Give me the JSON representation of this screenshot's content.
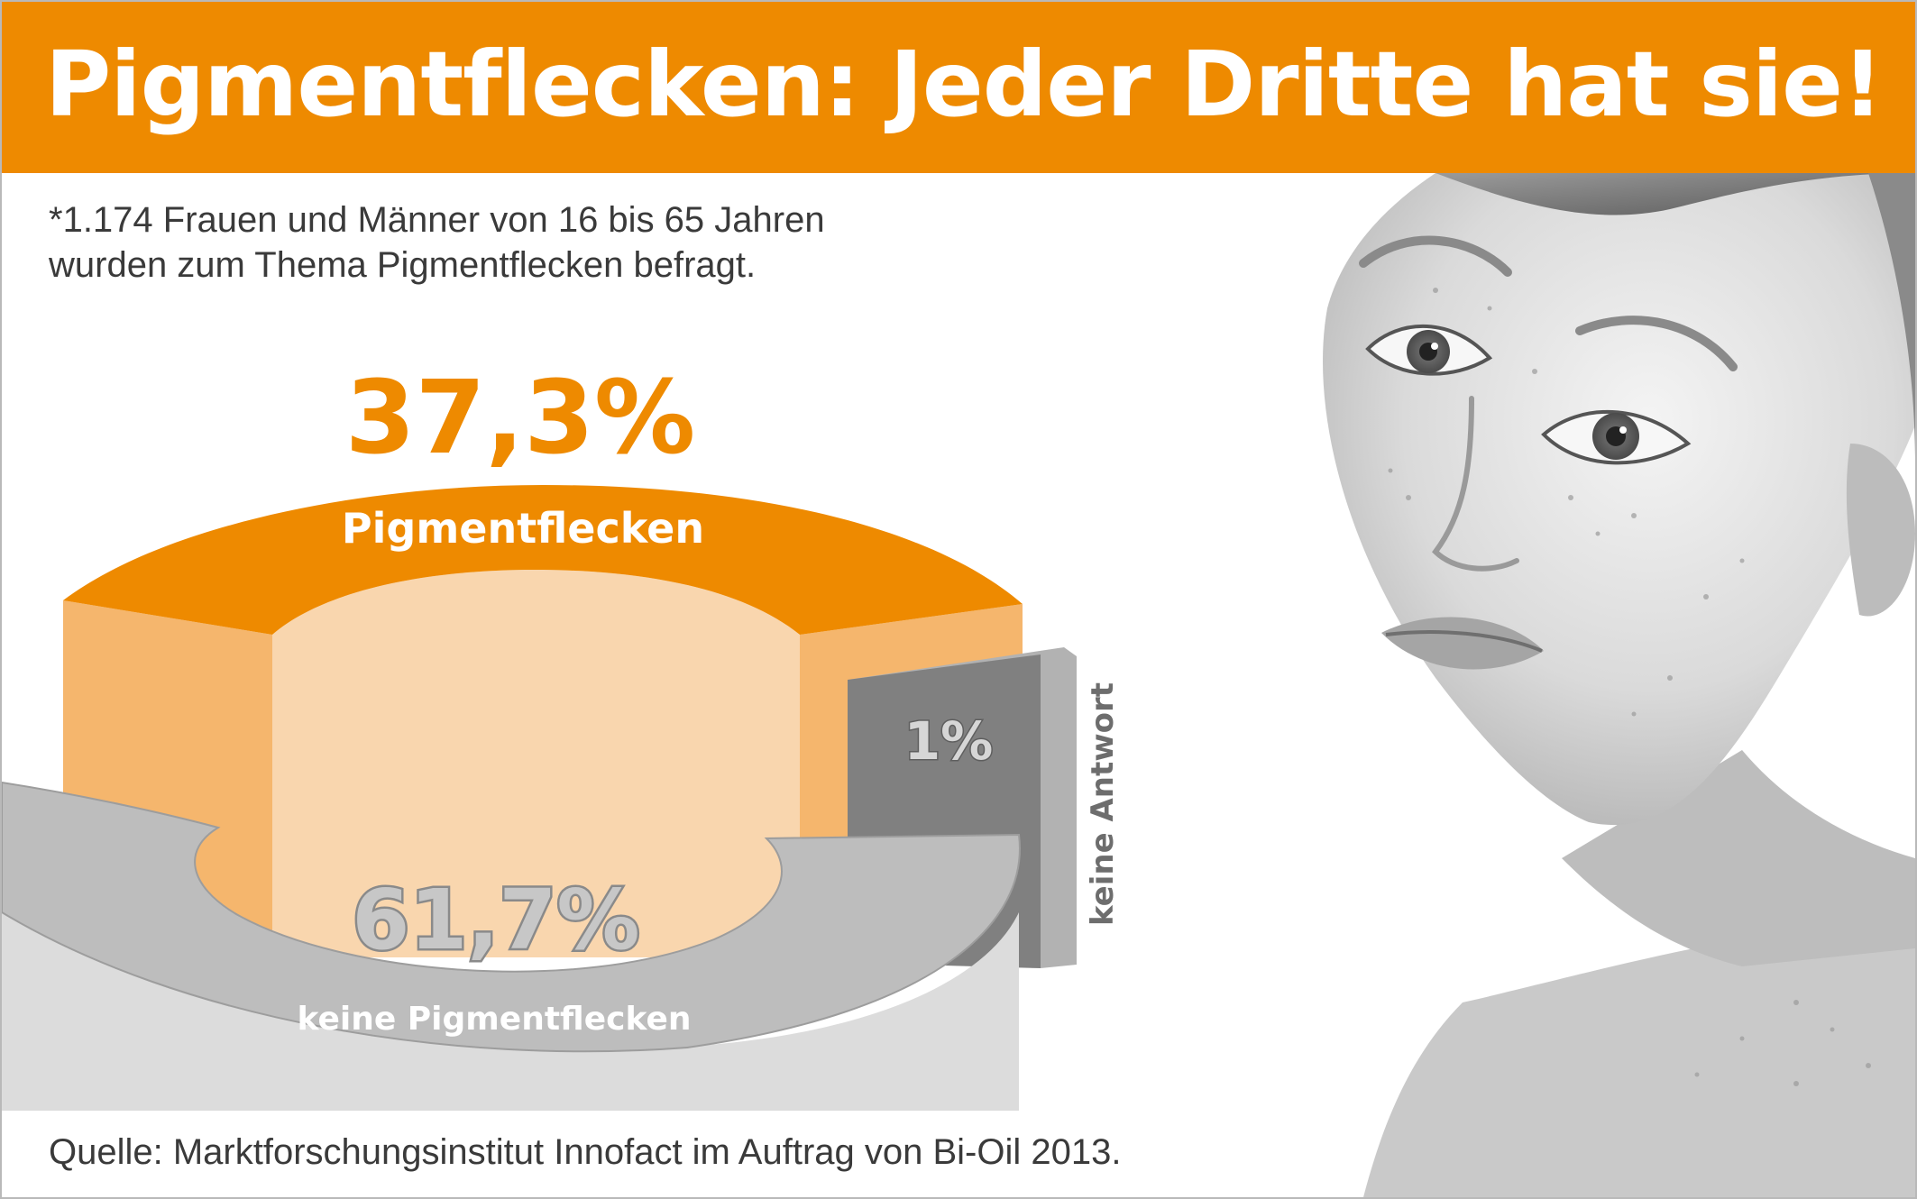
{
  "header": {
    "title": "Pigmentflecken: Jeder Dritte hat sie!"
  },
  "survey_note": {
    "line1": "*1.174 Frauen und Männer von 16 bis 65 Jahren",
    "line2": "wurden zum Thema Pigmentflecken befragt."
  },
  "source": "Quelle: Marktforschungsinstitut Innofact im Auftrag von Bi-Oil 2013.",
  "colors": {
    "banner": "#ee8a00",
    "pigment_top": "#ee8a00",
    "pigment_side": "#f5b66d",
    "pigment_inner": "#f9d6ae",
    "none_segment": "#bdbdbd",
    "none_front": "#dcdcdc",
    "no_answer": "#808080",
    "text_gray": "#3a3a3a"
  },
  "chart_data": {
    "type": "pie",
    "style": "3d-ring",
    "series": [
      {
        "label": "Pigmentflecken",
        "value_label": "37,3%",
        "value": 37.3
      },
      {
        "label": "keine Pigmentflecken",
        "value_label": "61,7%",
        "value": 61.7
      },
      {
        "label": "keine Antwort",
        "value_label": "1%",
        "value": 1
      }
    ]
  }
}
